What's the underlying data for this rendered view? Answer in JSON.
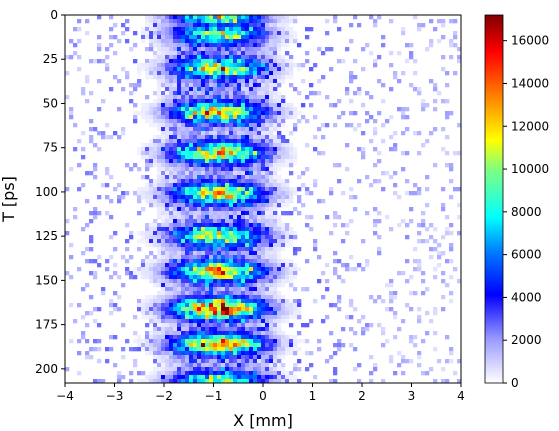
{
  "chart_data": {
    "type": "heatmap",
    "title": "",
    "xlabel": "X [mm]",
    "ylabel": "T [ps]",
    "xlim": [
      -4,
      4
    ],
    "ylim": [
      208,
      0
    ],
    "y_axis_inverted": true,
    "x_ticks": [
      -4,
      -3,
      -2,
      -1,
      0,
      1,
      2,
      3,
      4
    ],
    "x_tick_labels": [
      "−4",
      "−3",
      "−2",
      "−1",
      "0",
      "1",
      "2",
      "3",
      "4"
    ],
    "y_ticks": [
      0,
      25,
      50,
      75,
      100,
      125,
      150,
      175,
      200
    ],
    "y_tick_labels": [
      "0",
      "25",
      "50",
      "75",
      "100",
      "125",
      "150",
      "175",
      "200"
    ],
    "colorbar": {
      "colormap": "jet (white at low end)",
      "range": [
        0,
        17200
      ],
      "ticks": [
        0,
        2000,
        4000,
        6000,
        8000,
        10000,
        12000,
        14000,
        16000
      ],
      "tick_labels": [
        "0",
        "2000",
        "4000",
        "6000",
        "8000",
        "10000",
        "12000",
        "14000",
        "16000"
      ]
    },
    "colors": {
      "low": "#ffffff",
      "mid_low": "#0000ff",
      "mid": "#00ffff",
      "mid_high": "#ffff00",
      "high": "#ff0000",
      "max": "#800000"
    },
    "features": {
      "band_center_x_mm": -0.9,
      "band_halfwidth_x_mm": 1.0,
      "pulse_centers_t_ps": [
        1,
        11,
        30,
        55,
        78,
        101,
        125,
        145,
        166,
        186,
        207
      ],
      "pulse_peak_values": [
        9000,
        9000,
        11000,
        12000,
        12500,
        12000,
        11000,
        13000,
        16000,
        14000,
        9000
      ],
      "background_level": 800
    }
  }
}
